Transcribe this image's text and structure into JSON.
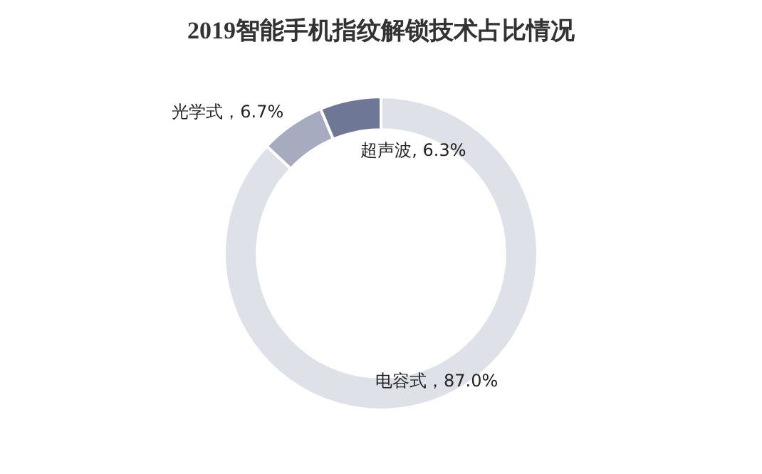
{
  "chart_data": {
    "type": "donut",
    "title": "2019智能手机指纹解锁技术占比情况",
    "categories": [
      "电容式",
      "光学式",
      "超声波"
    ],
    "values": [
      87.0,
      6.7,
      6.3
    ],
    "colors": [
      "#dfe1e9",
      "#a7abc0",
      "#6f7797"
    ],
    "value_labels": [
      "，87.0%",
      "，6.7%",
      ", 6.3%"
    ],
    "legend": false
  }
}
